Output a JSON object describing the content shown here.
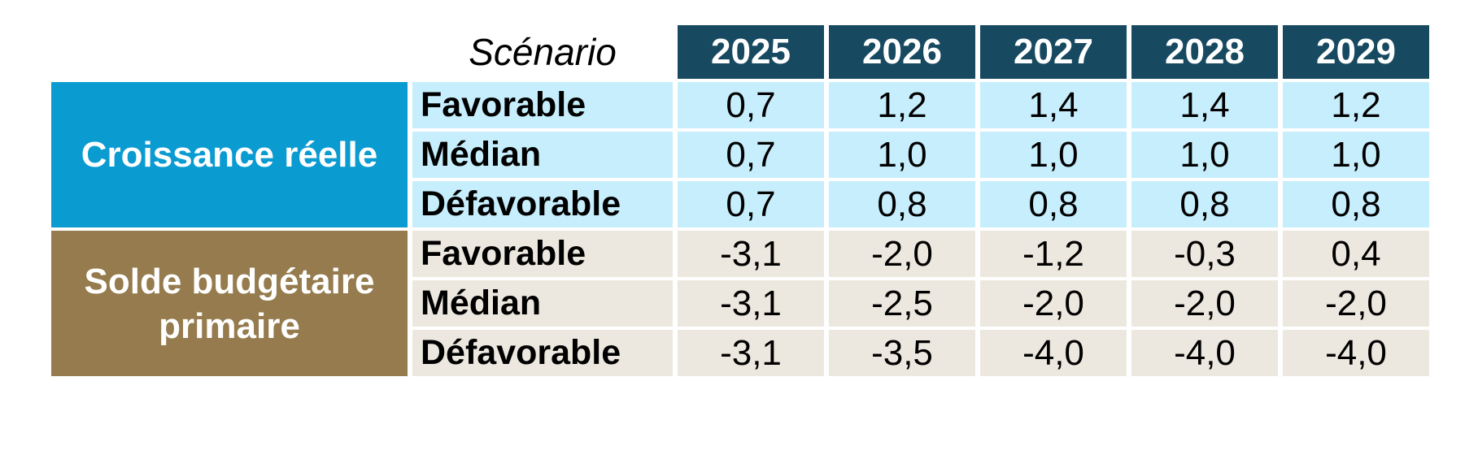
{
  "table": {
    "scenario_header": "Scénario",
    "years": [
      "2025",
      "2026",
      "2027",
      "2028",
      "2029"
    ],
    "groups": [
      {
        "label": "Croissance réelle",
        "header_color": "#0A9BD1",
        "row_bg": "#C6EEFC",
        "rows": [
          {
            "scenario": "Favorable",
            "values": [
              "0,7",
              "1,2",
              "1,4",
              "1,4",
              "1,2"
            ]
          },
          {
            "scenario": "Médian",
            "values": [
              "0,7",
              "1,0",
              "1,0",
              "1,0",
              "1,0"
            ]
          },
          {
            "scenario": "Défavorable",
            "values": [
              "0,7",
              "0,8",
              "0,8",
              "0,8",
              "0,8"
            ]
          }
        ]
      },
      {
        "label": "Solde budgétaire primaire",
        "header_color": "#957B4D",
        "row_bg": "#EDE8DF",
        "rows": [
          {
            "scenario": "Favorable",
            "values": [
              "-3,1",
              "-2,0",
              "-1,2",
              "-0,3",
              "0,4"
            ]
          },
          {
            "scenario": "Médian",
            "values": [
              "-3,1",
              "-2,5",
              "-2,0",
              "-2,0",
              "-2,0"
            ]
          },
          {
            "scenario": "Défavorable",
            "values": [
              "-3,1",
              "-3,5",
              "-4,0",
              "-4,0",
              "-4,0"
            ]
          }
        ]
      }
    ],
    "colors": {
      "year_header_bg": "#174A61",
      "year_header_text": "#FFFFFF",
      "group_text": "#FFFFFF",
      "body_text": "#000000",
      "gap": "#FFFFFF"
    }
  },
  "chart_data": {
    "type": "table",
    "columns": [
      "Scénario",
      "2025",
      "2026",
      "2027",
      "2028",
      "2029"
    ],
    "row_groups": [
      {
        "label": "Croissance réelle",
        "rows": [
          [
            "Favorable",
            0.7,
            1.2,
            1.4,
            1.4,
            1.2
          ],
          [
            "Médian",
            0.7,
            1.0,
            1.0,
            1.0,
            1.0
          ],
          [
            "Défavorable",
            0.7,
            0.8,
            0.8,
            0.8,
            0.8
          ]
        ]
      },
      {
        "label": "Solde budgétaire primaire",
        "rows": [
          [
            "Favorable",
            -3.1,
            -2.0,
            -1.2,
            -0.3,
            0.4
          ],
          [
            "Médian",
            -3.1,
            -2.5,
            -2.0,
            -2.0,
            -2.0
          ],
          [
            "Défavorable",
            -3.1,
            -3.5,
            -4.0,
            -4.0,
            -4.0
          ]
        ]
      }
    ],
    "decimal_separator": ",",
    "notes": "Values formatted with comma decimals; negative values in Solde budgétaire primaire group."
  }
}
